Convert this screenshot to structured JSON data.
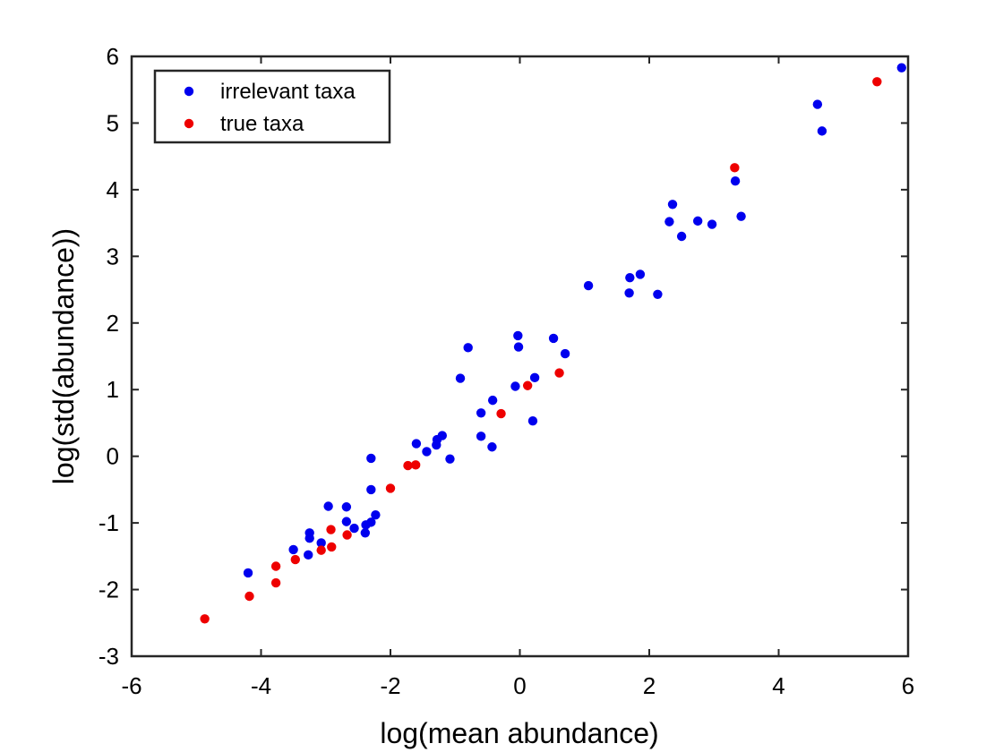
{
  "chart_data": {
    "type": "scatter",
    "xlabel": "log(mean abundance)",
    "ylabel": "log(std(abundance))",
    "xlim": [
      -6,
      6
    ],
    "ylim": [
      -3,
      6
    ],
    "xticks": [
      -6,
      -4,
      -2,
      0,
      2,
      4,
      6
    ],
    "yticks": [
      -3,
      -2,
      -1,
      0,
      1,
      2,
      3,
      4,
      5,
      6
    ],
    "grid": false,
    "legend_position": "top-left",
    "series": [
      {
        "name": "irrelevant taxa",
        "color": "#0000ee",
        "points": [
          [
            5.9,
            5.83
          ],
          [
            4.6,
            5.28
          ],
          [
            4.67,
            4.88
          ],
          [
            3.33,
            4.13
          ],
          [
            3.42,
            3.6
          ],
          [
            2.36,
            3.78
          ],
          [
            2.31,
            3.52
          ],
          [
            2.5,
            3.3
          ],
          [
            2.75,
            3.53
          ],
          [
            2.97,
            3.48
          ],
          [
            1.86,
            2.73
          ],
          [
            1.7,
            2.68
          ],
          [
            1.69,
            2.45
          ],
          [
            2.13,
            2.43
          ],
          [
            1.06,
            2.56
          ],
          [
            -0.03,
            1.81
          ],
          [
            -0.02,
            1.64
          ],
          [
            0.52,
            1.77
          ],
          [
            0.7,
            1.54
          ],
          [
            0.23,
            1.18
          ],
          [
            -0.07,
            1.05
          ],
          [
            -0.8,
            1.63
          ],
          [
            -0.92,
            1.17
          ],
          [
            -0.42,
            0.84
          ],
          [
            -0.6,
            0.65
          ],
          [
            -0.6,
            0.3
          ],
          [
            -0.43,
            0.14
          ],
          [
            0.2,
            0.53
          ],
          [
            -1.2,
            0.31
          ],
          [
            -1.28,
            0.25
          ],
          [
            -1.29,
            0.17
          ],
          [
            -1.44,
            0.07
          ],
          [
            -1.6,
            0.19
          ],
          [
            -1.08,
            -0.04
          ],
          [
            -2.3,
            -0.03
          ],
          [
            -2.3,
            -0.5
          ],
          [
            -2.96,
            -0.75
          ],
          [
            -2.68,
            -0.76
          ],
          [
            -2.23,
            -0.88
          ],
          [
            -2.3,
            -0.99
          ],
          [
            -2.68,
            -0.98
          ],
          [
            -2.38,
            -1.03
          ],
          [
            -2.56,
            -1.08
          ],
          [
            -2.39,
            -1.15
          ],
          [
            -3.25,
            -1.15
          ],
          [
            -3.25,
            -1.23
          ],
          [
            -3.07,
            -1.3
          ],
          [
            -3.5,
            -1.4
          ],
          [
            -3.27,
            -1.48
          ],
          [
            -4.2,
            -1.75
          ]
        ]
      },
      {
        "name": "true taxa",
        "color": "#ee0000",
        "points": [
          [
            5.52,
            5.62
          ],
          [
            3.32,
            4.33
          ],
          [
            0.61,
            1.25
          ],
          [
            0.12,
            1.06
          ],
          [
            -0.29,
            0.64
          ],
          [
            -1.61,
            -0.13
          ],
          [
            -1.73,
            -0.14
          ],
          [
            -2.0,
            -0.48
          ],
          [
            -2.92,
            -1.1
          ],
          [
            -2.67,
            -1.18
          ],
          [
            -2.91,
            -1.36
          ],
          [
            -3.07,
            -1.41
          ],
          [
            -3.47,
            -1.55
          ],
          [
            -3.77,
            -1.65
          ],
          [
            -3.77,
            -1.9
          ],
          [
            -4.18,
            -2.1
          ],
          [
            -4.87,
            -2.44
          ]
        ]
      }
    ]
  }
}
